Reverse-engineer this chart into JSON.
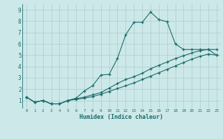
{
  "xlabel": "Humidex (Indice chaleur)",
  "xlim": [
    -0.5,
    23.5
  ],
  "ylim": [
    0.3,
    9.5
  ],
  "xticks": [
    0,
    1,
    2,
    3,
    4,
    5,
    6,
    7,
    8,
    9,
    10,
    11,
    12,
    13,
    14,
    15,
    16,
    17,
    18,
    19,
    20,
    21,
    22,
    23
  ],
  "yticks": [
    1,
    2,
    3,
    4,
    5,
    6,
    7,
    8,
    9
  ],
  "bg_color": "#cde8e8",
  "grid_color": "#aacccc",
  "line_color": "#1a6b6b",
  "line1_x": [
    0,
    1,
    2,
    3,
    4,
    5,
    6,
    7,
    8,
    9,
    10,
    11,
    12,
    13,
    14,
    15,
    16,
    17,
    18,
    19,
    20,
    21,
    22,
    23
  ],
  "line1_y": [
    1.3,
    0.85,
    1.0,
    0.7,
    0.7,
    1.0,
    1.2,
    1.85,
    2.3,
    3.25,
    3.3,
    4.7,
    6.8,
    7.9,
    7.9,
    8.8,
    8.15,
    7.95,
    6.0,
    5.5,
    5.5,
    5.5,
    5.5,
    5.5
  ],
  "line2_x": [
    0,
    1,
    2,
    3,
    4,
    5,
    6,
    7,
    8,
    9,
    10,
    11,
    12,
    13,
    14,
    15,
    16,
    17,
    18,
    19,
    20,
    21,
    22,
    23
  ],
  "line2_y": [
    1.3,
    0.85,
    1.0,
    0.7,
    0.7,
    1.0,
    1.15,
    1.3,
    1.5,
    1.7,
    2.1,
    2.5,
    2.85,
    3.1,
    3.4,
    3.8,
    4.1,
    4.4,
    4.7,
    4.95,
    5.2,
    5.4,
    5.5,
    5.0
  ],
  "line3_x": [
    0,
    1,
    2,
    3,
    4,
    5,
    6,
    7,
    8,
    9,
    10,
    11,
    12,
    13,
    14,
    15,
    16,
    17,
    18,
    19,
    20,
    21,
    22,
    23
  ],
  "line3_y": [
    1.3,
    0.85,
    1.0,
    0.7,
    0.7,
    1.0,
    1.1,
    1.2,
    1.35,
    1.55,
    1.8,
    2.05,
    2.3,
    2.55,
    2.85,
    3.15,
    3.45,
    3.75,
    4.05,
    4.35,
    4.65,
    4.9,
    5.1,
    5.0
  ]
}
